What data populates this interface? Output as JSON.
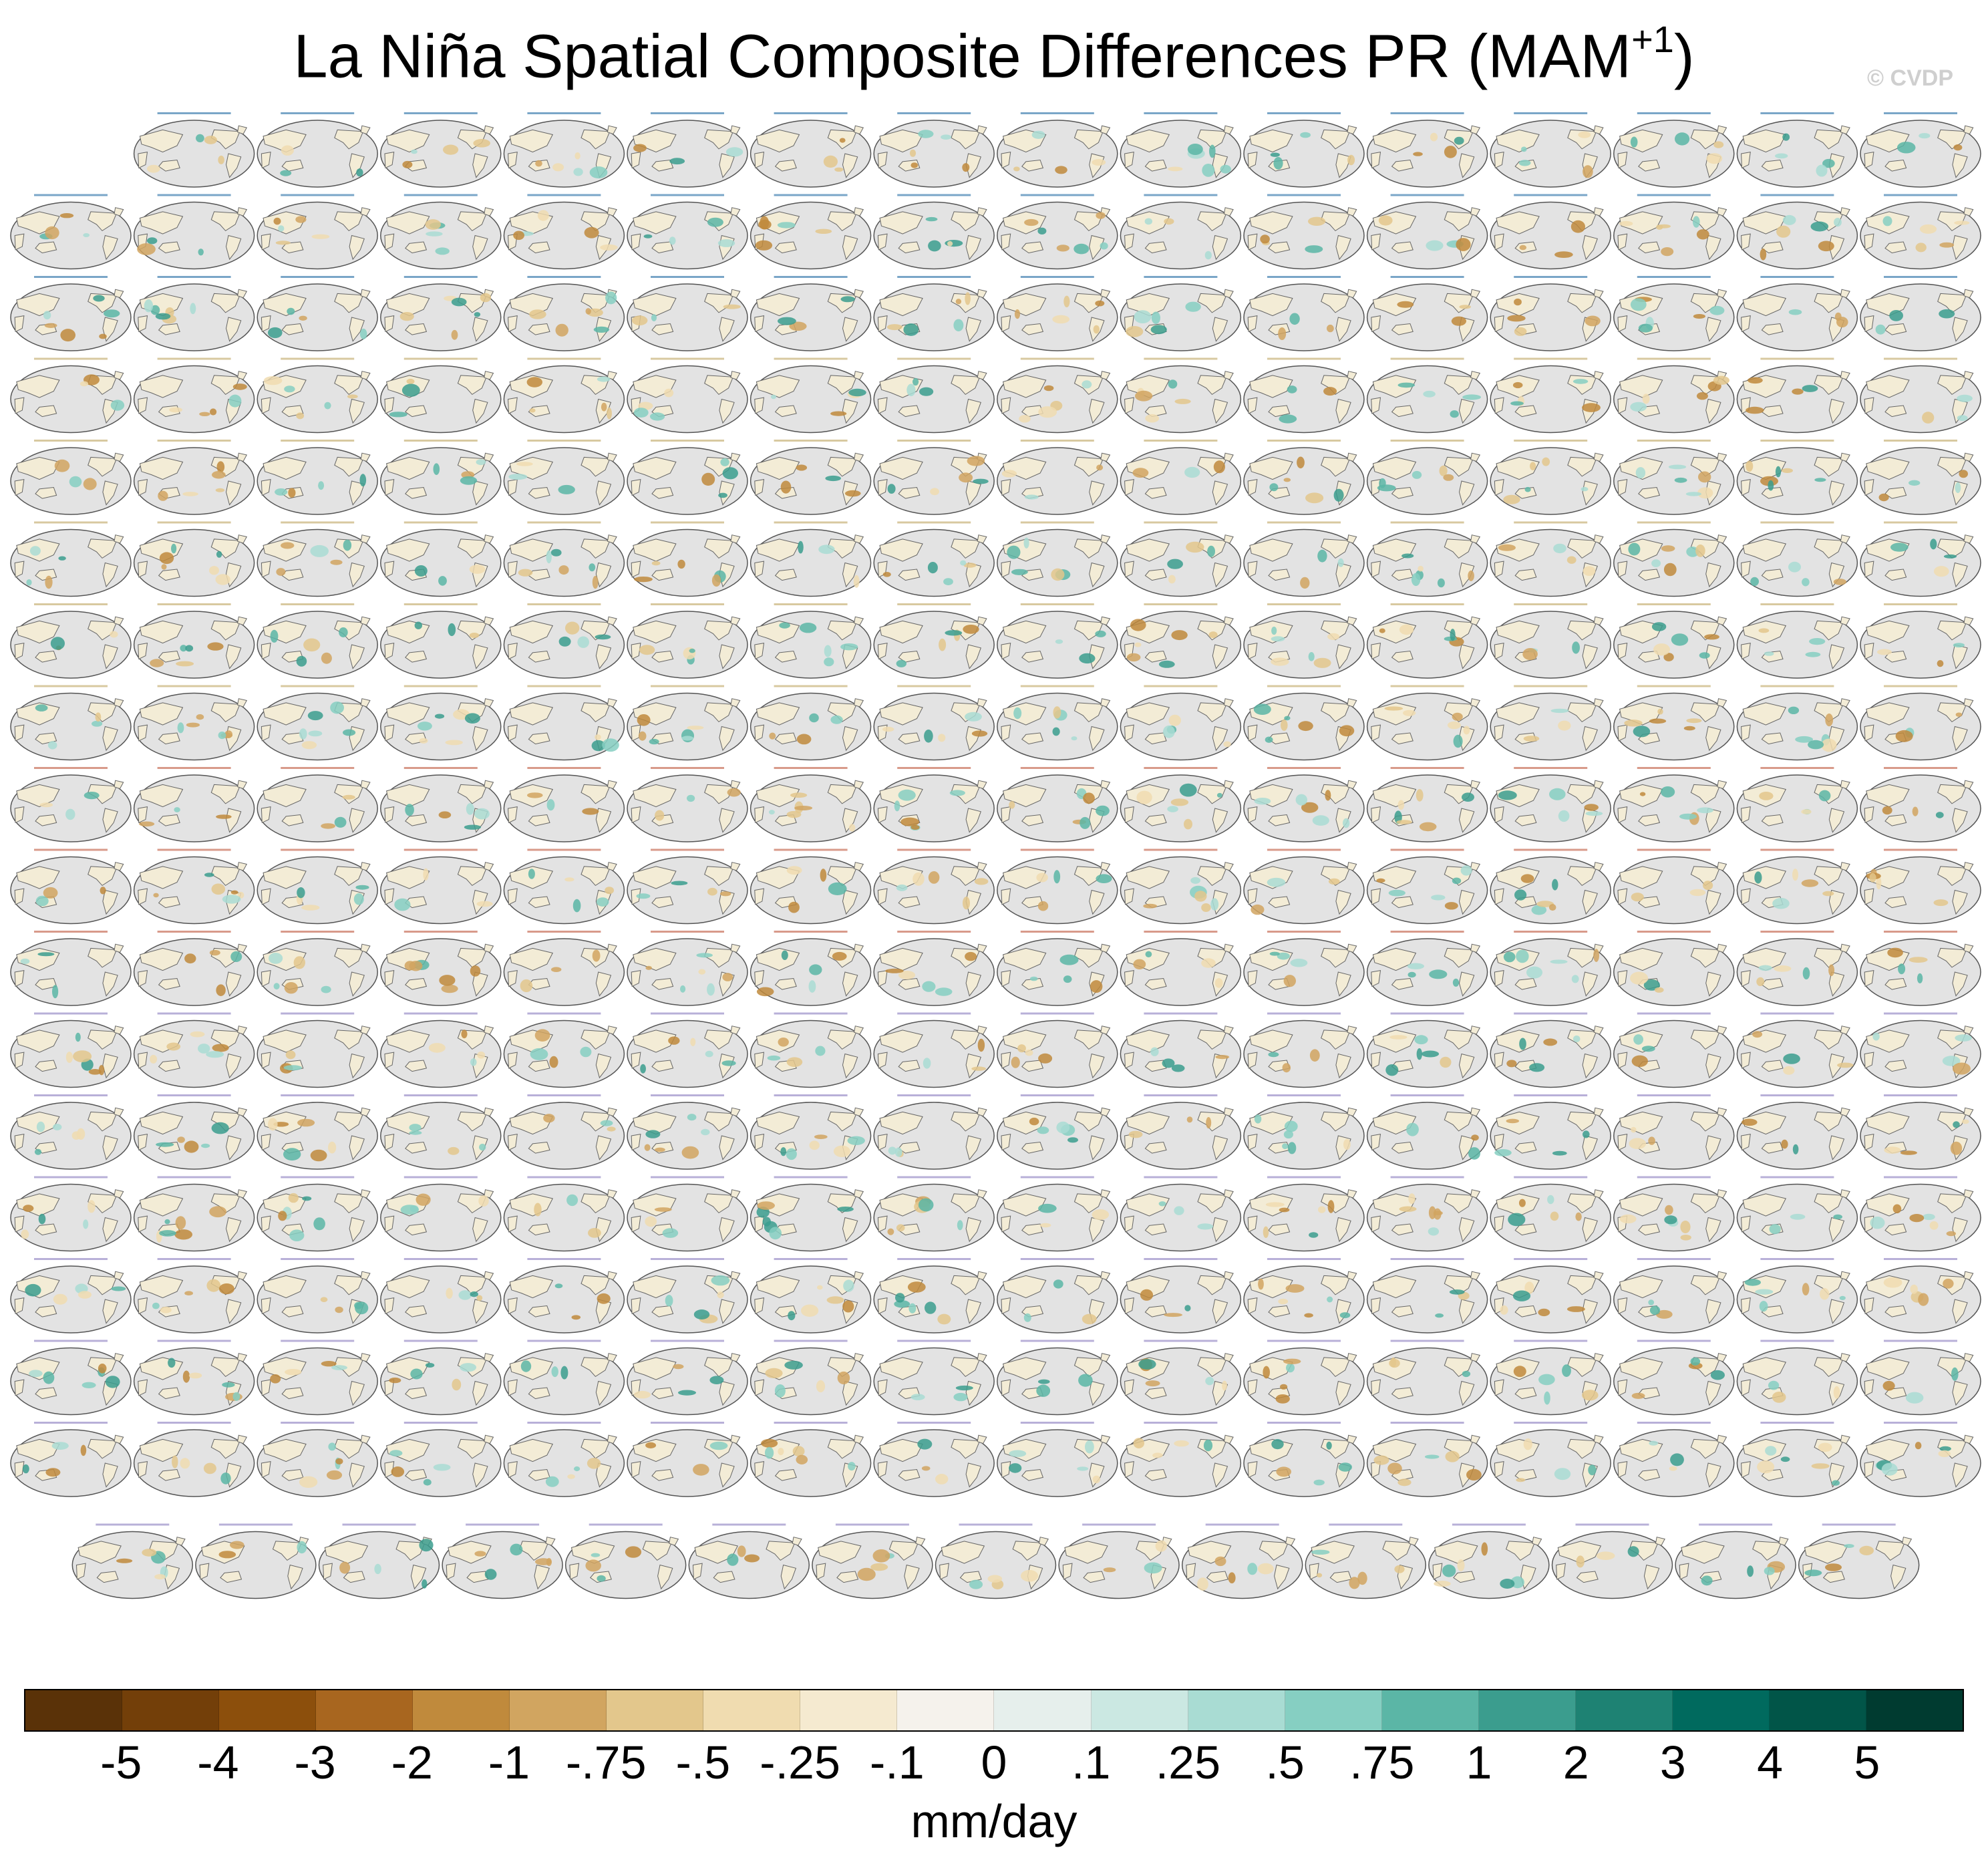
{
  "title": {
    "main": "La Niña Spatial Composite Differences PR (MAM",
    "sup": "+1",
    "close": ")"
  },
  "credit": "© CVDP",
  "chart_data": {
    "type": "heatmap",
    "description_note": "",
    "panels": {
      "rows": [
        {
          "count": 15,
          "offset_cols": 1
        },
        {
          "count": 16,
          "offset_cols": 0
        },
        {
          "count": 16,
          "offset_cols": 0
        },
        {
          "count": 16,
          "offset_cols": 0
        },
        {
          "count": 16,
          "offset_cols": 0
        },
        {
          "count": 16,
          "offset_cols": 0
        },
        {
          "count": 16,
          "offset_cols": 0
        },
        {
          "count": 16,
          "offset_cols": 0
        },
        {
          "count": 16,
          "offset_cols": 0
        },
        {
          "count": 16,
          "offset_cols": 0
        },
        {
          "count": 16,
          "offset_cols": 0
        },
        {
          "count": 16,
          "offset_cols": 0
        },
        {
          "count": 16,
          "offset_cols": 0
        },
        {
          "count": 16,
          "offset_cols": 0
        },
        {
          "count": 16,
          "offset_cols": 0
        },
        {
          "count": 16,
          "offset_cols": 0
        },
        {
          "count": 16,
          "offset_cols": 0
        },
        {
          "count": 15,
          "offset_cols": 0.5
        }
      ]
    },
    "colorbar": {
      "levels": [
        "-5",
        "-4",
        "-3",
        "-2",
        "-1",
        "-.75",
        "-.5",
        "-.25",
        "-.1",
        "0",
        ".1",
        ".25",
        ".5",
        ".75",
        "1",
        "2",
        "3",
        "4",
        "5"
      ],
      "colors": [
        "#5a3208",
        "#733f09",
        "#8c4f0c",
        "#a8661f",
        "#c08a3c",
        "#d1a560",
        "#e3c78c",
        "#f0dcb0",
        "#f5ead0",
        "#f5f2ec",
        "#e6efec",
        "#cbe8e2",
        "#a9dcd3",
        "#86cfc2",
        "#5bb6a6",
        "#3b9d8e",
        "#1e8273",
        "#006a5e",
        "#015548",
        "#003b30"
      ],
      "units": "mm/day"
    }
  }
}
